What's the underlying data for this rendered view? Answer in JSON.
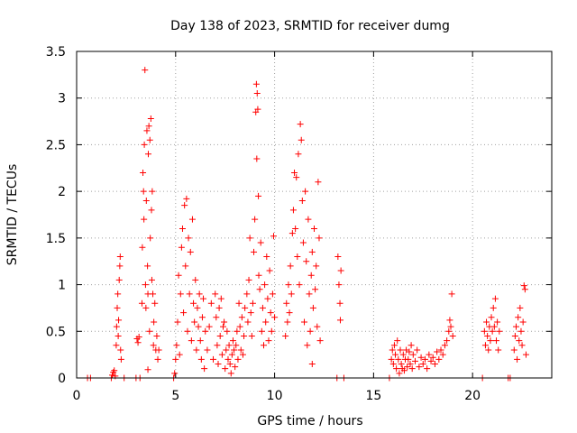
{
  "chart_data": {
    "type": "scatter",
    "title": "Day 138 of 2023, SRMTID for receiver dumg",
    "xlabel": "GPS time / hours",
    "ylabel": "SRMTID / TECUs",
    "xlim": [
      0,
      24
    ],
    "ylim": [
      0,
      3.5
    ],
    "grid": true,
    "marker": "plus",
    "color": "#ff0000",
    "xticks": [
      0,
      5,
      10,
      15,
      20
    ],
    "yticks": [
      0,
      0.5,
      1,
      1.5,
      2,
      2.5,
      3,
      3.5
    ],
    "xtick_labels": [
      "0",
      "5",
      "10",
      "15",
      "20"
    ],
    "ytick_labels": [
      "0",
      "0.5",
      "1",
      "1.5",
      "2",
      "2.5",
      "3",
      "3.5"
    ],
    "series": [
      {
        "name": "SRMTID",
        "points": [
          [
            0.55,
            0.0
          ],
          [
            0.7,
            0.0
          ],
          [
            1.75,
            0.0
          ],
          [
            1.8,
            0.03
          ],
          [
            1.85,
            0.06
          ],
          [
            1.9,
            0.08
          ],
          [
            1.95,
            0.02
          ],
          [
            2.0,
            0.35
          ],
          [
            2.02,
            0.55
          ],
          [
            2.05,
            0.75
          ],
          [
            2.08,
            0.9
          ],
          [
            2.1,
            0.45
          ],
          [
            2.12,
            0.62
          ],
          [
            2.15,
            1.05
          ],
          [
            2.18,
            1.2
          ],
          [
            2.2,
            1.3
          ],
          [
            2.22,
            0.3
          ],
          [
            2.25,
            0.2
          ],
          [
            2.4,
            0.0
          ],
          [
            3.0,
            0.0
          ],
          [
            3.05,
            0.42
          ],
          [
            3.1,
            0.38
          ],
          [
            3.15,
            0.44
          ],
          [
            3.2,
            0.0
          ],
          [
            3.3,
            0.8
          ],
          [
            3.32,
            1.4
          ],
          [
            3.35,
            2.2
          ],
          [
            3.38,
            2.0
          ],
          [
            3.4,
            1.7
          ],
          [
            3.42,
            2.5
          ],
          [
            3.45,
            3.3
          ],
          [
            3.48,
            1.0
          ],
          [
            3.5,
            0.75
          ],
          [
            3.52,
            1.9
          ],
          [
            3.55,
            2.65
          ],
          [
            3.58,
            1.2
          ],
          [
            3.6,
            0.9
          ],
          [
            3.62,
            2.4
          ],
          [
            3.65,
            2.7
          ],
          [
            3.68,
            0.5
          ],
          [
            3.7,
            2.55
          ],
          [
            3.72,
            1.5
          ],
          [
            3.75,
            2.78
          ],
          [
            3.78,
            1.8
          ],
          [
            3.8,
            1.05
          ],
          [
            3.82,
            2.0
          ],
          [
            3.85,
            0.9
          ],
          [
            3.88,
            0.35
          ],
          [
            3.9,
            0.6
          ],
          [
            3.95,
            0.8
          ],
          [
            4.0,
            0.3
          ],
          [
            4.05,
            0.45
          ],
          [
            4.1,
            0.2
          ],
          [
            4.15,
            0.3
          ],
          [
            3.6,
            0.09
          ],
          [
            4.9,
            0.0
          ],
          [
            4.95,
            0.05
          ],
          [
            5.0,
            0.2
          ],
          [
            5.05,
            0.35
          ],
          [
            5.1,
            0.6
          ],
          [
            5.15,
            1.1
          ],
          [
            5.2,
            0.25
          ],
          [
            5.25,
            0.9
          ],
          [
            5.3,
            1.4
          ],
          [
            5.35,
            1.6
          ],
          [
            5.4,
            0.7
          ],
          [
            5.45,
            1.85
          ],
          [
            5.5,
            1.2
          ],
          [
            5.55,
            1.92
          ],
          [
            5.6,
            0.5
          ],
          [
            5.65,
            1.5
          ],
          [
            5.7,
            0.9
          ],
          [
            5.75,
            1.35
          ],
          [
            5.8,
            0.4
          ],
          [
            5.85,
            1.7
          ],
          [
            5.9,
            0.8
          ],
          [
            5.95,
            0.6
          ],
          [
            6.0,
            1.05
          ],
          [
            6.05,
            0.3
          ],
          [
            6.1,
            0.75
          ],
          [
            6.15,
            0.55
          ],
          [
            6.2,
            0.9
          ],
          [
            6.25,
            0.4
          ],
          [
            6.3,
            0.2
          ],
          [
            6.35,
            0.65
          ],
          [
            6.4,
            0.85
          ],
          [
            6.45,
            0.1
          ],
          [
            6.5,
            0.5
          ],
          [
            6.6,
            0.3
          ],
          [
            6.7,
            0.55
          ],
          [
            6.8,
            0.8
          ],
          [
            6.9,
            0.2
          ],
          [
            7.0,
            0.9
          ],
          [
            7.05,
            0.65
          ],
          [
            7.1,
            0.35
          ],
          [
            7.15,
            0.15
          ],
          [
            7.2,
            0.75
          ],
          [
            7.25,
            0.45
          ],
          [
            7.3,
            0.85
          ],
          [
            7.35,
            0.25
          ],
          [
            7.4,
            0.55
          ],
          [
            7.45,
            0.6
          ],
          [
            7.5,
            0.1
          ],
          [
            7.55,
            0.3
          ],
          [
            7.6,
            0.5
          ],
          [
            7.65,
            0.2
          ],
          [
            7.7,
            0.35
          ],
          [
            7.75,
            0.15
          ],
          [
            7.8,
            0.05
          ],
          [
            7.85,
            0.25
          ],
          [
            7.9,
            0.4
          ],
          [
            7.95,
            0.3
          ],
          [
            8.0,
            0.12
          ],
          [
            8.05,
            0.35
          ],
          [
            8.1,
            0.5
          ],
          [
            8.15,
            0.2
          ],
          [
            8.2,
            0.8
          ],
          [
            8.25,
            0.55
          ],
          [
            8.3,
            0.3
          ],
          [
            8.35,
            0.65
          ],
          [
            8.4,
            0.25
          ],
          [
            8.45,
            0.45
          ],
          [
            8.5,
            0.75
          ],
          [
            8.6,
            0.9
          ],
          [
            8.65,
            0.6
          ],
          [
            8.7,
            1.05
          ],
          [
            8.75,
            1.5
          ],
          [
            8.8,
            0.7
          ],
          [
            8.85,
            0.45
          ],
          [
            8.9,
            0.8
          ],
          [
            8.95,
            1.35
          ],
          [
            9.0,
            1.7
          ],
          [
            9.05,
            2.85
          ],
          [
            9.08,
            3.15
          ],
          [
            9.1,
            2.35
          ],
          [
            9.12,
            3.05
          ],
          [
            9.15,
            2.88
          ],
          [
            9.18,
            1.95
          ],
          [
            9.2,
            1.1
          ],
          [
            9.25,
            0.95
          ],
          [
            9.3,
            1.45
          ],
          [
            9.35,
            0.5
          ],
          [
            9.4,
            0.75
          ],
          [
            9.45,
            0.35
          ],
          [
            9.5,
            1.0
          ],
          [
            9.55,
            0.6
          ],
          [
            9.6,
            1.3
          ],
          [
            9.65,
            0.85
          ],
          [
            9.7,
            0.4
          ],
          [
            9.75,
            1.15
          ],
          [
            9.8,
            0.7
          ],
          [
            9.85,
            0.5
          ],
          [
            9.9,
            0.9
          ],
          [
            9.95,
            1.52
          ],
          [
            10.0,
            0.65
          ],
          [
            10.55,
            0.45
          ],
          [
            10.6,
            0.8
          ],
          [
            10.65,
            0.6
          ],
          [
            10.7,
            1.0
          ],
          [
            10.75,
            0.7
          ],
          [
            10.8,
            1.2
          ],
          [
            10.85,
            0.9
          ],
          [
            10.9,
            1.55
          ],
          [
            10.95,
            1.8
          ],
          [
            11.0,
            2.2
          ],
          [
            11.05,
            1.6
          ],
          [
            11.1,
            2.15
          ],
          [
            11.15,
            1.3
          ],
          [
            11.2,
            2.4
          ],
          [
            11.25,
            1.0
          ],
          [
            11.3,
            2.72
          ],
          [
            11.35,
            2.55
          ],
          [
            11.4,
            1.9
          ],
          [
            11.45,
            1.45
          ],
          [
            11.5,
            0.6
          ],
          [
            11.55,
            2.0
          ],
          [
            11.6,
            1.25
          ],
          [
            11.65,
            0.35
          ],
          [
            11.7,
            1.7
          ],
          [
            11.75,
            0.9
          ],
          [
            11.8,
            0.5
          ],
          [
            11.85,
            1.1
          ],
          [
            11.9,
            1.35
          ],
          [
            11.95,
            0.75
          ],
          [
            12.0,
            1.6
          ],
          [
            12.05,
            0.95
          ],
          [
            12.1,
            1.2
          ],
          [
            12.15,
            0.55
          ],
          [
            12.2,
            2.1
          ],
          [
            12.25,
            1.5
          ],
          [
            12.3,
            0.4
          ],
          [
            11.9,
            0.15
          ],
          [
            13.15,
            0.0
          ],
          [
            13.2,
            1.3
          ],
          [
            13.25,
            1.0
          ],
          [
            13.3,
            0.8
          ],
          [
            13.32,
            0.62
          ],
          [
            13.35,
            1.15
          ],
          [
            13.5,
            0.0
          ],
          [
            15.8,
            0.0
          ],
          [
            15.9,
            0.2
          ],
          [
            15.95,
            0.3
          ],
          [
            16.0,
            0.15
          ],
          [
            16.05,
            0.35
          ],
          [
            16.1,
            0.25
          ],
          [
            16.15,
            0.1
          ],
          [
            16.2,
            0.4
          ],
          [
            16.25,
            0.2
          ],
          [
            16.3,
            0.05
          ],
          [
            16.35,
            0.3
          ],
          [
            16.4,
            0.15
          ],
          [
            16.45,
            0.1
          ],
          [
            16.5,
            0.25
          ],
          [
            16.55,
            0.08
          ],
          [
            16.6,
            0.2
          ],
          [
            16.65,
            0.3
          ],
          [
            16.7,
            0.12
          ],
          [
            16.75,
            0.2
          ],
          [
            16.8,
            0.28
          ],
          [
            16.85,
            0.15
          ],
          [
            16.9,
            0.35
          ],
          [
            16.95,
            0.1
          ],
          [
            17.0,
            0.25
          ],
          [
            17.1,
            0.18
          ],
          [
            17.2,
            0.3
          ],
          [
            17.3,
            0.12
          ],
          [
            17.4,
            0.22
          ],
          [
            17.5,
            0.15
          ],
          [
            17.6,
            0.2
          ],
          [
            17.7,
            0.1
          ],
          [
            17.8,
            0.25
          ],
          [
            17.9,
            0.18
          ],
          [
            18.0,
            0.22
          ],
          [
            18.1,
            0.15
          ],
          [
            18.2,
            0.28
          ],
          [
            18.3,
            0.2
          ],
          [
            18.4,
            0.3
          ],
          [
            18.5,
            0.25
          ],
          [
            18.6,
            0.35
          ],
          [
            18.7,
            0.4
          ],
          [
            18.8,
            0.5
          ],
          [
            18.85,
            0.62
          ],
          [
            18.9,
            0.55
          ],
          [
            18.95,
            0.9
          ],
          [
            19.0,
            0.45
          ],
          [
            20.5,
            0.0
          ],
          [
            20.6,
            0.5
          ],
          [
            20.65,
            0.35
          ],
          [
            20.7,
            0.6
          ],
          [
            20.75,
            0.45
          ],
          [
            20.8,
            0.3
          ],
          [
            20.85,
            0.55
          ],
          [
            20.9,
            0.4
          ],
          [
            20.95,
            0.65
          ],
          [
            21.0,
            0.5
          ],
          [
            21.05,
            0.75
          ],
          [
            21.1,
            0.55
          ],
          [
            21.15,
            0.85
          ],
          [
            21.2,
            0.4
          ],
          [
            21.25,
            0.6
          ],
          [
            21.3,
            0.3
          ],
          [
            21.35,
            0.5
          ],
          [
            21.8,
            0.0
          ],
          [
            21.9,
            0.0
          ],
          [
            22.1,
            0.3
          ],
          [
            22.15,
            0.45
          ],
          [
            22.2,
            0.55
          ],
          [
            22.25,
            0.2
          ],
          [
            22.3,
            0.65
          ],
          [
            22.35,
            0.4
          ],
          [
            22.4,
            0.75
          ],
          [
            22.45,
            0.5
          ],
          [
            22.5,
            0.35
          ],
          [
            22.55,
            0.6
          ],
          [
            22.6,
            0.99
          ],
          [
            22.65,
            0.95
          ],
          [
            22.7,
            0.25
          ]
        ]
      }
    ]
  }
}
